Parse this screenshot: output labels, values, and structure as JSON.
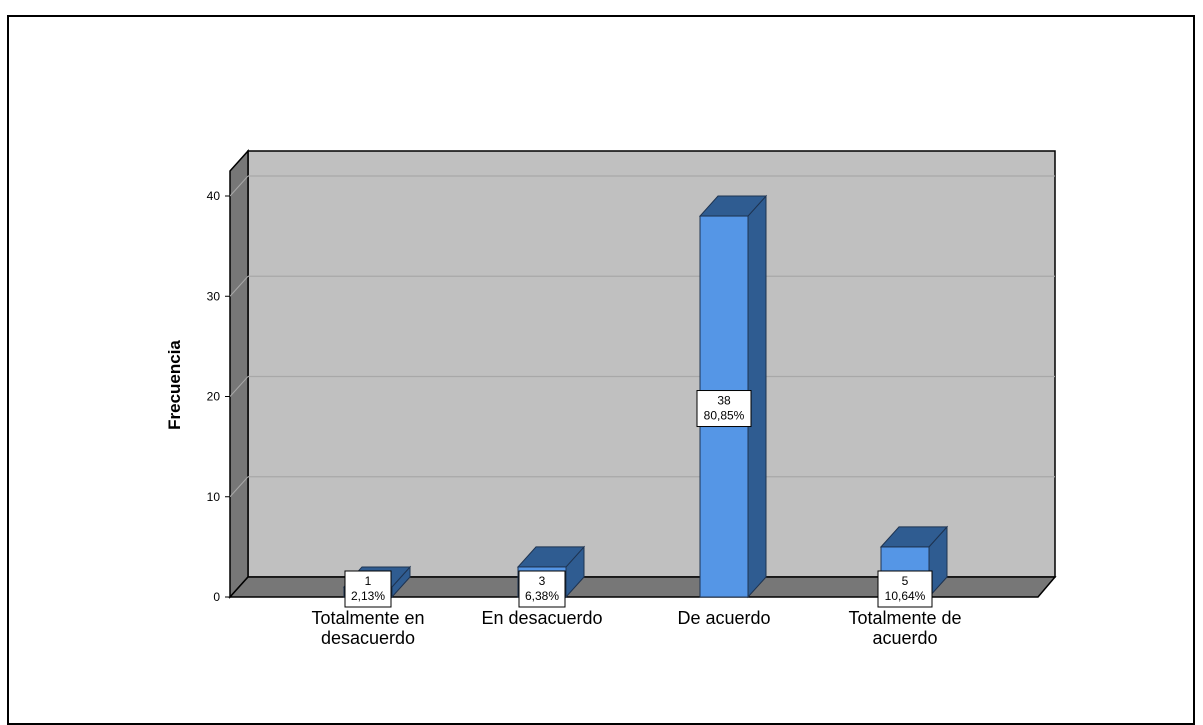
{
  "chart_data": {
    "type": "bar",
    "title": "",
    "xlabel": "",
    "ylabel": "Frecuencia",
    "ylim": [
      0,
      40
    ],
    "yticks": [
      0,
      10,
      20,
      30,
      40
    ],
    "grid": true,
    "three_d": true,
    "categories": [
      [
        "Totalmente en",
        "desacuerdo"
      ],
      [
        "En desacuerdo"
      ],
      [
        "De acuerdo"
      ],
      [
        "Totalmente de",
        "acuerdo"
      ]
    ],
    "values": [
      1,
      3,
      38,
      5
    ],
    "percent_labels": [
      "2,13%",
      "6,38%",
      "80,85%",
      "10,64%"
    ],
    "colors": {
      "bar_front": "#5596E6",
      "bar_top": "#2F5C91",
      "bar_side": "#2F5C91",
      "wall": "#C0C0C0",
      "wall_side": "#777777",
      "floor": "#777777",
      "grid": "#A8A8A8"
    }
  }
}
